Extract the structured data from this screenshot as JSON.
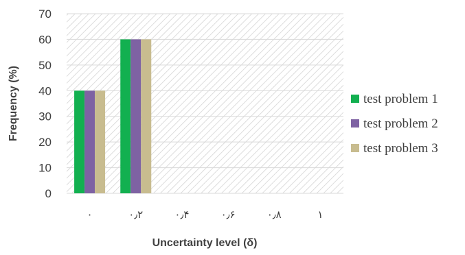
{
  "chart_data": {
    "type": "bar",
    "categories": [
      "۰",
      "۰٫۲",
      "۰٫۴",
      "۰٫۶",
      "۰٫۸",
      "۱"
    ],
    "series": [
      {
        "name": "test problem 1",
        "values": [
          40,
          60,
          0,
          0,
          0,
          0
        ],
        "color": "#12b050"
      },
      {
        "name": "test problem 2",
        "values": [
          40,
          60,
          0,
          0,
          0,
          0
        ],
        "color": "#7e62a3"
      },
      {
        "name": "test problem 3",
        "values": [
          40,
          60,
          0,
          0,
          0,
          0
        ],
        "color": "#c8bc8f"
      }
    ],
    "xlabel": "Uncertainty level (δ)",
    "ylabel": "Frequency (%)",
    "ylim": [
      0,
      70
    ],
    "yticks": [
      0,
      10,
      20,
      30,
      40,
      50,
      60,
      70
    ],
    "grid": true,
    "legend_position": "right",
    "plot_background": "diagonal-hatch"
  }
}
